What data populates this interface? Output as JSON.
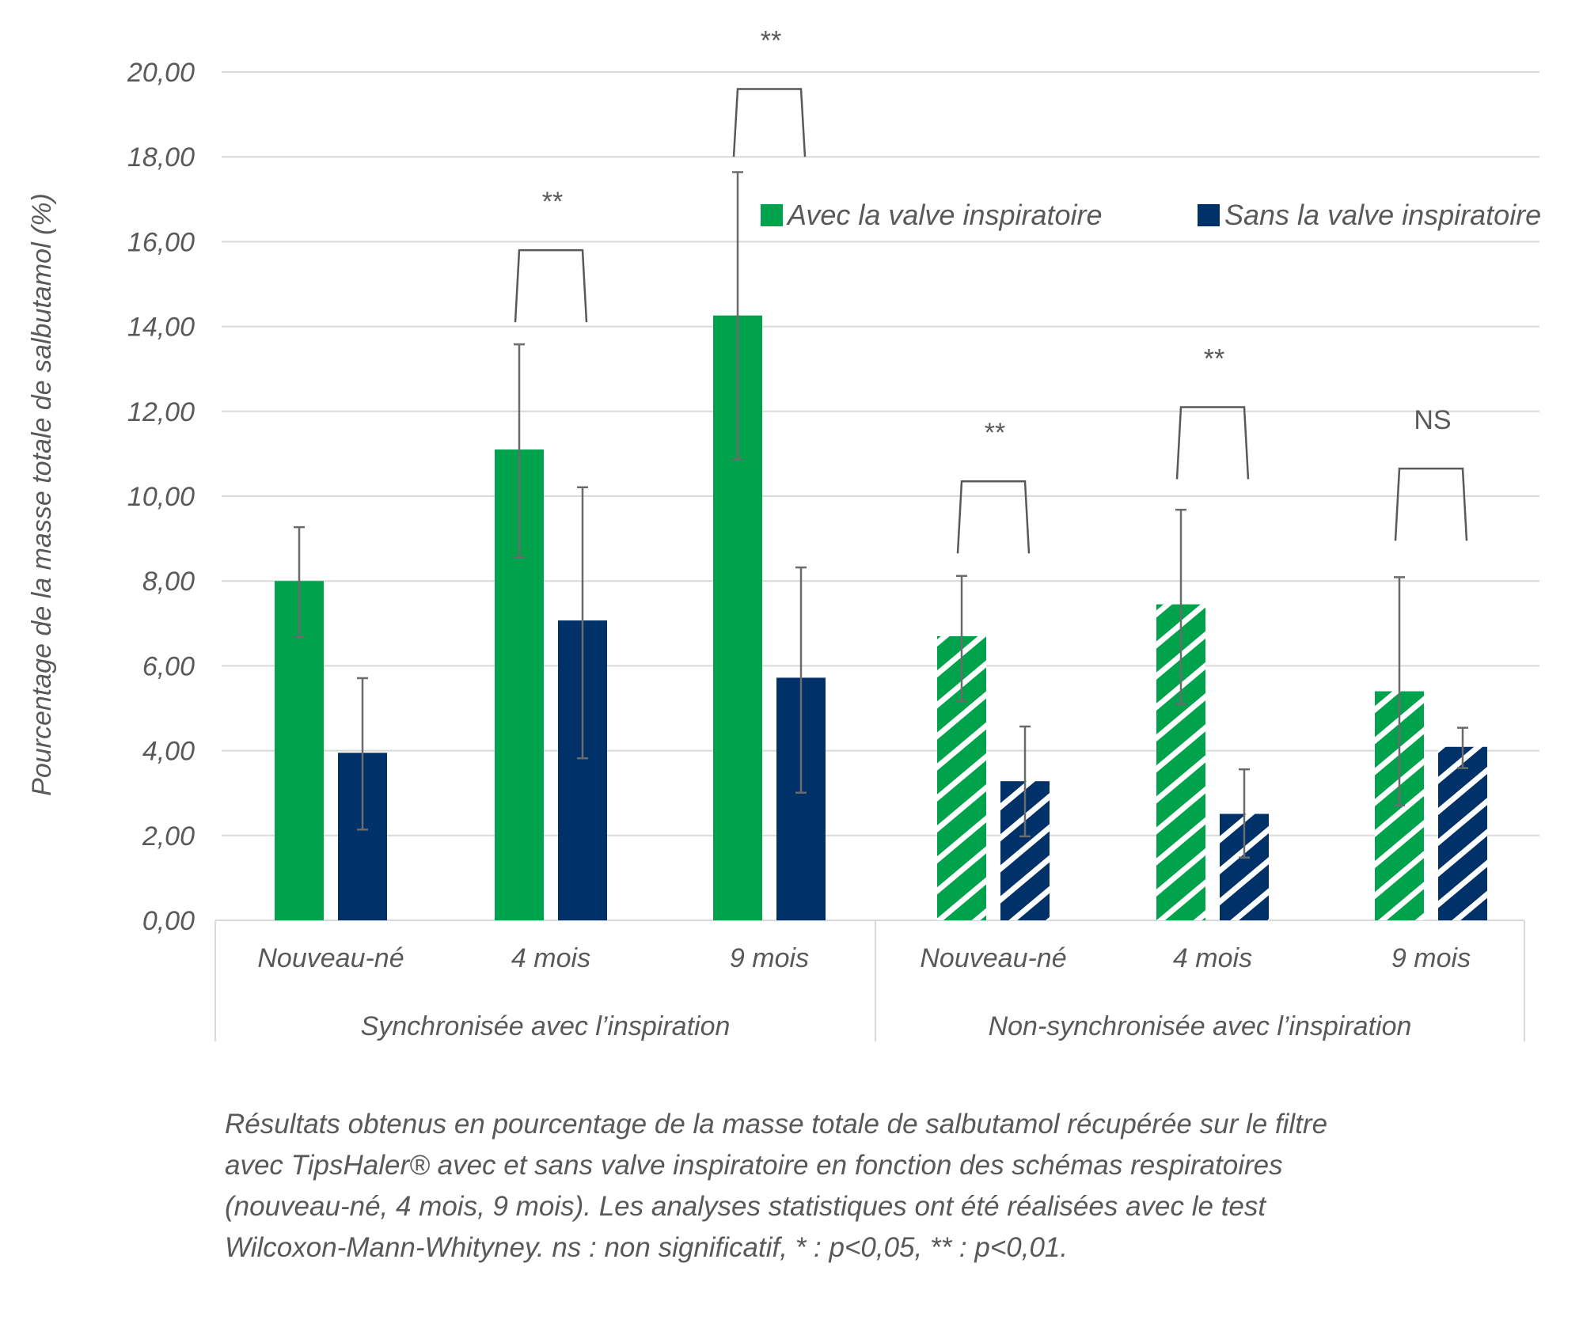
{
  "chart_data": {
    "type": "bar",
    "title": "",
    "xlabel": "",
    "ylabel": "Pourcentage de la masse totale de salbutamol (%)",
    "ylim": [
      0,
      20
    ],
    "yticks": [
      "0,00",
      "2,00",
      "4,00",
      "6,00",
      "8,00",
      "10,00",
      "12,00",
      "14,00",
      "16,00",
      "18,00",
      "20,00"
    ],
    "grid": true,
    "legend_position": "top-right",
    "groups": [
      {
        "label": "Synchronisée avec l’inspiration",
        "categories": [
          "Nouveau-né",
          "4 mois",
          "9 mois"
        ],
        "hatched": false
      },
      {
        "label": "Non-synchronisée avec l’inspiration",
        "categories": [
          "Nouveau-né",
          "4 mois",
          "9 mois"
        ],
        "hatched": true
      }
    ],
    "categories": [
      "Nouveau-né",
      "4 mois",
      "9 mois",
      "Nouveau-né",
      "4 mois",
      "9 mois"
    ],
    "series": [
      {
        "name": "Avec la valve inspiratoire",
        "color": "#00A34B",
        "values": [
          8.0,
          11.1,
          14.26,
          6.7,
          7.45,
          5.4
        ],
        "error_low": [
          6.68,
          8.56,
          10.87,
          5.17,
          5.1,
          2.71
        ],
        "error_high": [
          9.27,
          13.58,
          17.64,
          8.12,
          9.68,
          8.09
        ]
      },
      {
        "name": "Sans la valve inspiratoire",
        "color": "#003168",
        "values": [
          3.95,
          7.07,
          5.72,
          3.28,
          2.51,
          4.09
        ],
        "error_low": [
          2.14,
          3.82,
          3.01,
          1.98,
          1.48,
          3.59
        ],
        "error_high": [
          5.71,
          10.21,
          8.32,
          4.57,
          3.56,
          4.54
        ]
      }
    ],
    "significance": [
      {
        "category_index": 1,
        "label": "**",
        "bracket_top": 15.8,
        "bracket_leg_bottom": 14.1
      },
      {
        "category_index": 2,
        "label": "**",
        "bracket_top": 19.6,
        "bracket_leg_bottom": 18.0
      },
      {
        "category_index": 3,
        "label": "**",
        "bracket_top": 10.35,
        "bracket_leg_bottom": 8.65
      },
      {
        "category_index": 4,
        "label": "**",
        "bracket_top": 12.1,
        "bracket_leg_bottom": 10.4
      },
      {
        "category_index": 5,
        "label": "NS",
        "bracket_top": 10.65,
        "bracket_leg_bottom": 8.95
      }
    ]
  },
  "caption": {
    "lines": [
      "Résultats obtenus en pourcentage de la masse totale de salbutamol récupérée sur le filtre",
      "avec TipsHaler® avec et sans valve inspiratoire en fonction des schémas respiratoires",
      "(nouveau-né, 4 mois, 9 mois). Les analyses statistiques ont été réalisées avec le test",
      "Wilcoxon-Mann-Whityney. ns : non significatif, * : p<0,05, ** : p<0,01."
    ]
  }
}
